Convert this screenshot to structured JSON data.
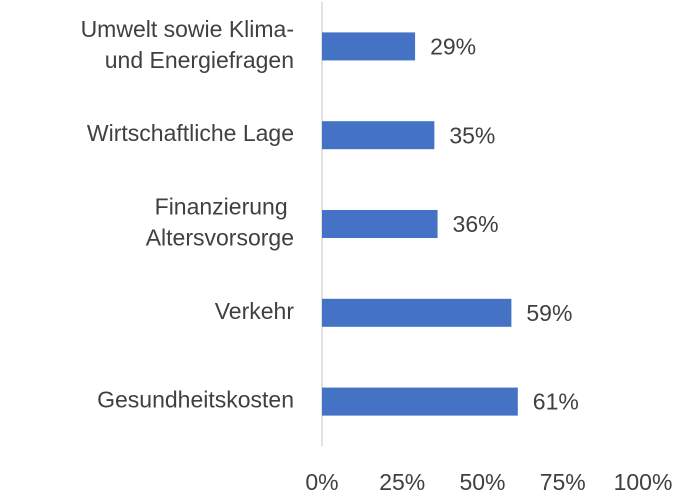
{
  "chart_data": {
    "type": "bar",
    "orientation": "horizontal",
    "categories": [
      "Umwelt sowie Klima-\nund Energiefragen",
      "Wirtschaftliche Lage",
      "Finanzierung \nAltersvorsorge",
      "Verkehr",
      "Gesundheitskosten"
    ],
    "values": [
      29,
      35,
      36,
      59,
      61
    ],
    "value_labels": [
      "29%",
      "35%",
      "36%",
      "59%",
      "61%"
    ],
    "color": "#4472c4",
    "xlim": [
      0,
      100
    ],
    "xticks": [
      {
        "value": 0,
        "label": "0%"
      },
      {
        "value": 25,
        "label": "25%"
      },
      {
        "value": 50,
        "label": "50%"
      },
      {
        "value": 75,
        "label": "75%"
      },
      {
        "value": 100,
        "label": "100%"
      }
    ],
    "grid": false
  }
}
